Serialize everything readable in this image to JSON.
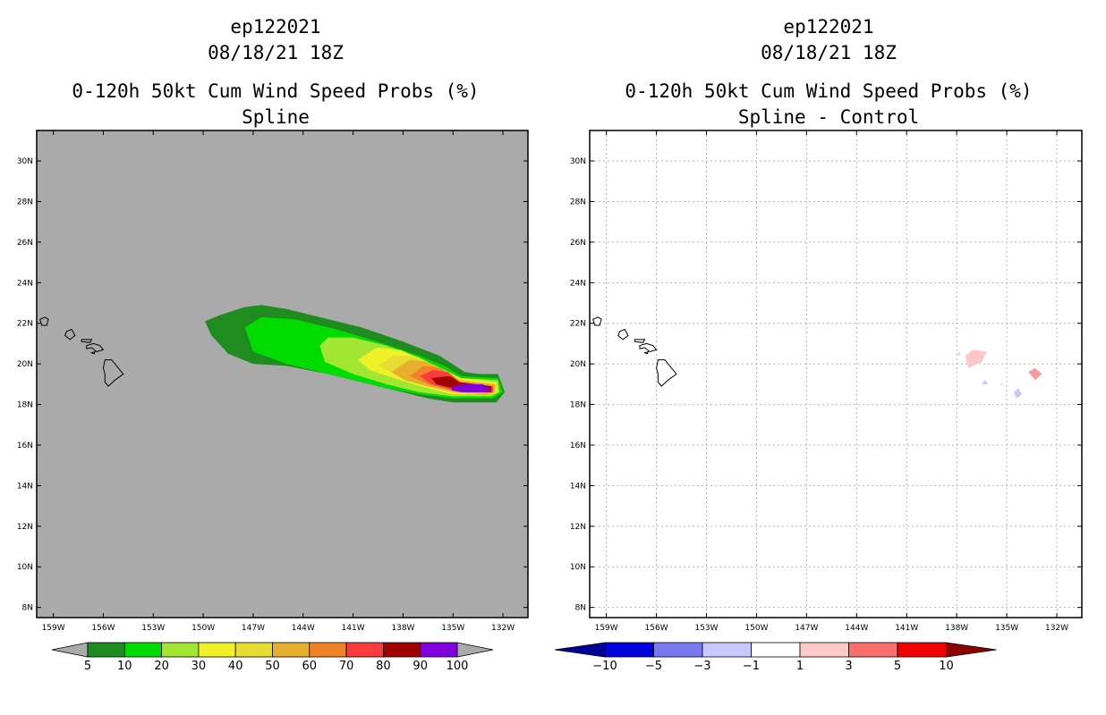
{
  "chart_data": [
    {
      "type": "heatmap",
      "id": "left",
      "storm": "ep122021",
      "datetime": "08/18/21 18Z",
      "title": "0-120h 50kt Cum Wind Speed Probs (%)",
      "subtitle": "Spline",
      "xlim": [
        -160,
        -130.5
      ],
      "ylim": [
        7.5,
        31.5
      ],
      "x_ticks": [
        -159,
        -156,
        -153,
        -150,
        -147,
        -144,
        -141,
        -138,
        -135,
        -132
      ],
      "x_tick_labels": [
        "159W",
        "156W",
        "153W",
        "150W",
        "147W",
        "144W",
        "141W",
        "138W",
        "135W",
        "132W"
      ],
      "y_ticks": [
        8,
        10,
        12,
        14,
        16,
        18,
        20,
        22,
        24,
        26,
        28,
        30
      ],
      "y_tick_labels": [
        "8N",
        "10N",
        "12N",
        "14N",
        "16N",
        "18N",
        "20N",
        "22N",
        "24N",
        "26N",
        "28N",
        "30N"
      ],
      "background": "#aaaaaa",
      "grid": false,
      "colorbar": {
        "labels": [
          "5",
          "10",
          "20",
          "30",
          "40",
          "50",
          "60",
          "70",
          "80",
          "90",
          "100"
        ],
        "colors": [
          "#1e8c1e",
          "#00dc00",
          "#a0e632",
          "#f0f028",
          "#e6dc32",
          "#e6af2d",
          "#f08228",
          "#fa3c3c",
          "#a00000",
          "#8200dc"
        ],
        "end_color": "#aaaaaa"
      },
      "contours": [
        {
          "level": 5,
          "color": "#1e8c1e",
          "points": [
            [
              -149.9,
              22.1
            ],
            [
              -149,
              22.4
            ],
            [
              -147.5,
              22.8
            ],
            [
              -146.5,
              22.9
            ],
            [
              -145,
              22.7
            ],
            [
              -143,
              22.3
            ],
            [
              -140.5,
              21.8
            ],
            [
              -138,
              21.1
            ],
            [
              -135.8,
              20.4
            ],
            [
              -134.3,
              19.6
            ],
            [
              -133.4,
              19.5
            ],
            [
              -132.3,
              19.5
            ],
            [
              -131.9,
              18.6
            ],
            [
              -132.4,
              18.1
            ],
            [
              -135,
              18.1
            ],
            [
              -136.5,
              18.3
            ],
            [
              -138,
              18.6
            ],
            [
              -140,
              19.0
            ],
            [
              -142.5,
              19.5
            ],
            [
              -145,
              19.9
            ],
            [
              -147,
              20.0
            ],
            [
              -148.5,
              20.5
            ],
            [
              -149.5,
              21.4
            ]
          ]
        },
        {
          "level": 10,
          "color": "#00dc00",
          "points": [
            [
              -147.5,
              21.8
            ],
            [
              -146.5,
              22.3
            ],
            [
              -144.5,
              22.2
            ],
            [
              -142,
              21.7
            ],
            [
              -139.5,
              21.1
            ],
            [
              -137,
              20.4
            ],
            [
              -135.5,
              19.9
            ],
            [
              -134.5,
              19.4
            ],
            [
              -132.3,
              19.3
            ],
            [
              -132.0,
              18.6
            ],
            [
              -132.6,
              18.3
            ],
            [
              -135,
              18.3
            ],
            [
              -137,
              18.5
            ],
            [
              -139,
              18.8
            ],
            [
              -141,
              19.2
            ],
            [
              -143,
              19.6
            ],
            [
              -145,
              20.0
            ],
            [
              -147,
              20.6
            ]
          ]
        },
        {
          "level": 20,
          "color": "#a0e632",
          "points": [
            [
              -143,
              20.9
            ],
            [
              -142.5,
              21.3
            ],
            [
              -141,
              21.3
            ],
            [
              -139,
              20.9
            ],
            [
              -137,
              20.3
            ],
            [
              -135.5,
              19.7
            ],
            [
              -134.5,
              19.3
            ],
            [
              -132.3,
              19.2
            ],
            [
              -132.2,
              18.6
            ],
            [
              -132.7,
              18.4
            ],
            [
              -135,
              18.4
            ],
            [
              -137,
              18.6
            ],
            [
              -139,
              19.0
            ],
            [
              -141,
              19.5
            ],
            [
              -142.7,
              20.1
            ]
          ]
        },
        {
          "level": 30,
          "color": "#f0f028",
          "points": [
            [
              -140.7,
              20.2
            ],
            [
              -139.6,
              20.8
            ],
            [
              -138.2,
              20.7
            ],
            [
              -136.8,
              20.2
            ],
            [
              -135.5,
              19.7
            ],
            [
              -134.6,
              19.3
            ],
            [
              -132.4,
              19.1
            ],
            [
              -132.3,
              18.6
            ],
            [
              -132.8,
              18.5
            ],
            [
              -135,
              18.5
            ],
            [
              -136.5,
              18.8
            ],
            [
              -138.2,
              19.2
            ],
            [
              -140,
              19.7
            ]
          ]
        },
        {
          "level": 40,
          "color": "#e6dc32",
          "points": [
            [
              -139.5,
              19.9
            ],
            [
              -138.6,
              20.4
            ],
            [
              -137.5,
              20.4
            ],
            [
              -136.3,
              20.0
            ],
            [
              -135.3,
              19.6
            ],
            [
              -134.6,
              19.2
            ],
            [
              -132.4,
              19.0
            ],
            [
              -132.4,
              18.6
            ],
            [
              -132.9,
              18.5
            ],
            [
              -135,
              18.6
            ],
            [
              -136.5,
              18.9
            ],
            [
              -138,
              19.3
            ]
          ]
        },
        {
          "level": 50,
          "color": "#e6af2d",
          "points": [
            [
              -138.7,
              19.6
            ],
            [
              -137.6,
              20.2
            ],
            [
              -136.5,
              20.1
            ],
            [
              -135.4,
              19.6
            ],
            [
              -134.6,
              19.2
            ],
            [
              -132.5,
              19.0
            ],
            [
              -132.5,
              18.6
            ],
            [
              -133,
              18.5
            ],
            [
              -135,
              18.6
            ],
            [
              -136.6,
              18.9
            ],
            [
              -137.9,
              19.2
            ]
          ]
        },
        {
          "level": 60,
          "color": "#f08228",
          "points": [
            [
              -137.6,
              19.4
            ],
            [
              -136.8,
              19.9
            ],
            [
              -135.8,
              19.8
            ],
            [
              -135,
              19.4
            ],
            [
              -134.6,
              19.1
            ],
            [
              -132.6,
              18.9
            ],
            [
              -132.6,
              18.6
            ],
            [
              -133,
              18.6
            ],
            [
              -135,
              18.7
            ],
            [
              -136.5,
              19.0
            ]
          ]
        },
        {
          "level": 70,
          "color": "#fa3c3c",
          "points": [
            [
              -137,
              19.4
            ],
            [
              -136.2,
              19.7
            ],
            [
              -135.3,
              19.6
            ],
            [
              -134.6,
              19.1
            ],
            [
              -132.6,
              18.9
            ],
            [
              -132.6,
              18.6
            ],
            [
              -133.1,
              18.6
            ],
            [
              -135,
              18.7
            ],
            [
              -136.3,
              19.0
            ]
          ]
        },
        {
          "level": 80,
          "color": "#a00000",
          "points": [
            [
              -136.3,
              19.3
            ],
            [
              -135.2,
              19.4
            ],
            [
              -134.6,
              19.1
            ],
            [
              -132.7,
              18.9
            ],
            [
              -132.7,
              18.6
            ],
            [
              -133.1,
              18.6
            ],
            [
              -135,
              18.8
            ],
            [
              -136,
              19.0
            ]
          ]
        },
        {
          "level": 90,
          "color": "#8200dc",
          "points": [
            [
              -135,
              18.9
            ],
            [
              -134.3,
              19.0
            ],
            [
              -133.2,
              19.0
            ],
            [
              -132.7,
              18.7
            ],
            [
              -133.1,
              18.6
            ],
            [
              -134.5,
              18.6
            ],
            [
              -135.1,
              18.7
            ]
          ]
        }
      ]
    },
    {
      "type": "heatmap",
      "id": "right",
      "storm": "ep122021",
      "datetime": "08/18/21 18Z",
      "title": "0-120h 50kt Cum Wind Speed Probs (%)",
      "subtitle": "Spline - Control",
      "xlim": [
        -160,
        -130.5
      ],
      "ylim": [
        7.5,
        31.5
      ],
      "x_ticks": [
        -159,
        -156,
        -153,
        -150,
        -147,
        -144,
        -141,
        -138,
        -135,
        -132
      ],
      "x_tick_labels": [
        "159W",
        "156W",
        "153W",
        "150W",
        "147W",
        "144W",
        "141W",
        "138W",
        "135W",
        "132W"
      ],
      "y_ticks": [
        8,
        10,
        12,
        14,
        16,
        18,
        20,
        22,
        24,
        26,
        28,
        30
      ],
      "y_tick_labels": [
        "8N",
        "10N",
        "12N",
        "14N",
        "16N",
        "18N",
        "20N",
        "22N",
        "24N",
        "26N",
        "28N",
        "30N"
      ],
      "background": "#ffffff",
      "grid": true,
      "colorbar": {
        "labels": [
          "-10",
          "-5",
          "-3",
          "-1",
          "1",
          "3",
          "5",
          "10"
        ],
        "colors": [
          "#0000dc",
          "#7878f0",
          "#c8c8ff",
          "#ffffff",
          "#ffc8c8",
          "#fa6e6e",
          "#f00000"
        ],
        "end_low": "#000096",
        "end_high": "#8c0000"
      },
      "contours": [
        {
          "level": 1,
          "color": "#ffc8c8",
          "points": [
            [
              -137.5,
              20.4
            ],
            [
              -137,
              20.7
            ],
            [
              -136.2,
              20.6
            ],
            [
              -136.5,
              20.1
            ],
            [
              -137.3,
              19.8
            ]
          ]
        },
        {
          "level": 1,
          "color": "#ffc8c8",
          "points": [
            [
              -138,
              20.5
            ],
            [
              -137.8,
              20.6
            ],
            [
              -137.8,
              20.4
            ]
          ]
        },
        {
          "level": 3,
          "color": "#fa9a9a",
          "points": [
            [
              -133.7,
              19.6
            ],
            [
              -133.3,
              19.8
            ],
            [
              -132.9,
              19.5
            ],
            [
              -133.3,
              19.2
            ]
          ]
        },
        {
          "level": -1,
          "color": "#c8c8ff",
          "points": [
            [
              -136.5,
              19.0
            ],
            [
              -136.3,
              19.2
            ],
            [
              -136.1,
              19.0
            ]
          ]
        },
        {
          "level": -1,
          "color": "#c8c8ff",
          "points": [
            [
              -134.6,
              18.6
            ],
            [
              -134.3,
              18.8
            ],
            [
              -134.1,
              18.5
            ],
            [
              -134.4,
              18.3
            ]
          ]
        },
        {
          "level": -1,
          "color": "#c8c8ff",
          "points": [
            [
              -135.4,
              19.0
            ],
            [
              -135.2,
              19.05
            ],
            [
              -135.3,
              18.95
            ]
          ]
        }
      ]
    }
  ],
  "coastlines": [
    {
      "name": "Niihau-Kauai",
      "points": [
        [
          -159.8,
          22.2
        ],
        [
          -159.5,
          22.3
        ],
        [
          -159.3,
          22.2
        ],
        [
          -159.4,
          21.9
        ],
        [
          -159.7,
          21.9
        ]
      ]
    },
    {
      "name": "Oahu",
      "points": [
        [
          -158.2,
          21.6
        ],
        [
          -157.9,
          21.7
        ],
        [
          -157.7,
          21.4
        ],
        [
          -158.0,
          21.2
        ],
        [
          -158.3,
          21.4
        ]
      ]
    },
    {
      "name": "Molokai",
      "points": [
        [
          -157.3,
          21.2
        ],
        [
          -156.7,
          21.2
        ],
        [
          -156.8,
          21.05
        ],
        [
          -157.3,
          21.1
        ]
      ]
    },
    {
      "name": "Maui-Lanai",
      "points": [
        [
          -157.0,
          20.9
        ],
        [
          -156.6,
          21.0
        ],
        [
          -156.2,
          20.9
        ],
        [
          -156.0,
          20.7
        ],
        [
          -156.4,
          20.6
        ],
        [
          -156.7,
          20.8
        ],
        [
          -157.0,
          20.75
        ]
      ]
    },
    {
      "name": "Kahoolawe",
      "points": [
        [
          -156.7,
          20.55
        ],
        [
          -156.5,
          20.6
        ],
        [
          -156.55,
          20.5
        ]
      ]
    },
    {
      "name": "Hawaii",
      "points": [
        [
          -155.9,
          20.2
        ],
        [
          -155.5,
          20.2
        ],
        [
          -155.1,
          19.8
        ],
        [
          -154.8,
          19.5
        ],
        [
          -155.3,
          19.2
        ],
        [
          -155.7,
          18.9
        ],
        [
          -155.9,
          19.1
        ],
        [
          -155.9,
          19.5
        ],
        [
          -156.0,
          19.8
        ]
      ]
    }
  ]
}
